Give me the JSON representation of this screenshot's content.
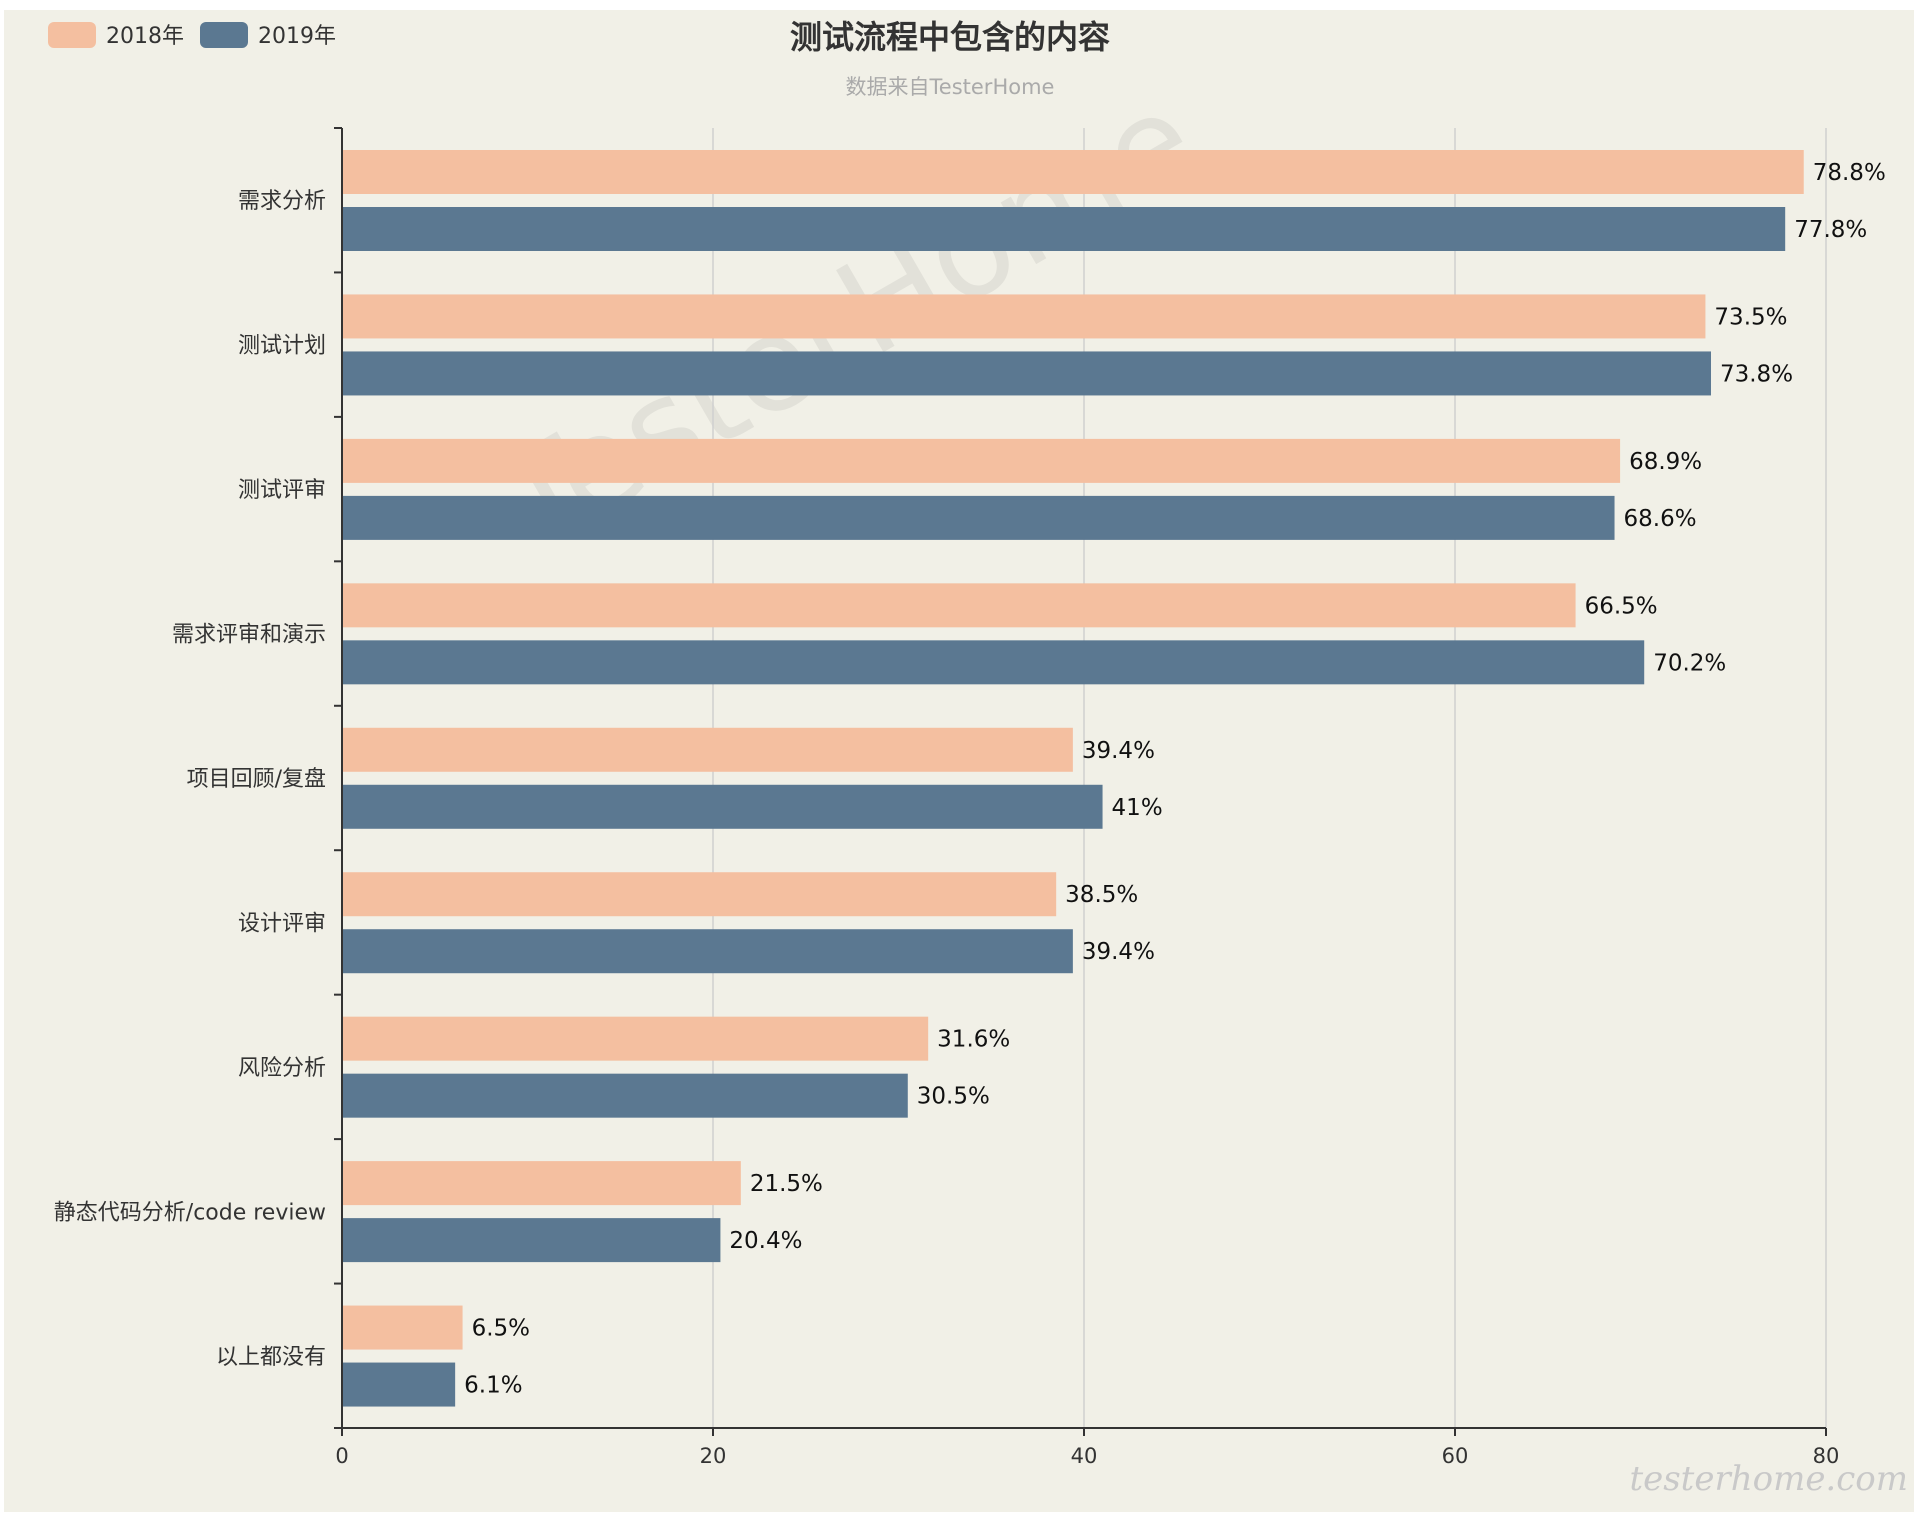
{
  "chart_data": {
    "type": "bar",
    "orientation": "horizontal",
    "title": "测试流程中包含的内容",
    "subtitle": "数据来自TesterHome",
    "categories": [
      "需求分析",
      "测试计划",
      "测试评审",
      "需求评审和演示",
      "项目回顾/复盘",
      "设计评审",
      "风险分析",
      "静态代码分析/code review",
      "以上都没有"
    ],
    "series": [
      {
        "name": "2018年",
        "color": "#f4bfa0",
        "values": [
          78.8,
          73.5,
          68.9,
          66.5,
          39.4,
          38.5,
          31.6,
          21.5,
          6.5
        ],
        "labels": [
          "78.8%",
          "73.5%",
          "68.9%",
          "66.5%",
          "39.4%",
          "38.5%",
          "31.6%",
          "21.5%",
          "6.5%"
        ]
      },
      {
        "name": "2019年",
        "color": "#5b7891",
        "values": [
          77.8,
          73.8,
          68.6,
          70.2,
          41,
          39.4,
          30.5,
          20.4,
          6.1
        ],
        "labels": [
          "77.8%",
          "73.8%",
          "68.6%",
          "70.2%",
          "41%",
          "39.4%",
          "30.5%",
          "20.4%",
          "6.1%"
        ]
      }
    ],
    "xlim": [
      0,
      80
    ],
    "xticks": [
      "0",
      "20",
      "40",
      "60",
      "80"
    ],
    "grid": true,
    "legend_position": "top-left",
    "watermark": "TesterHome",
    "site_mark": "testerhome.com"
  }
}
